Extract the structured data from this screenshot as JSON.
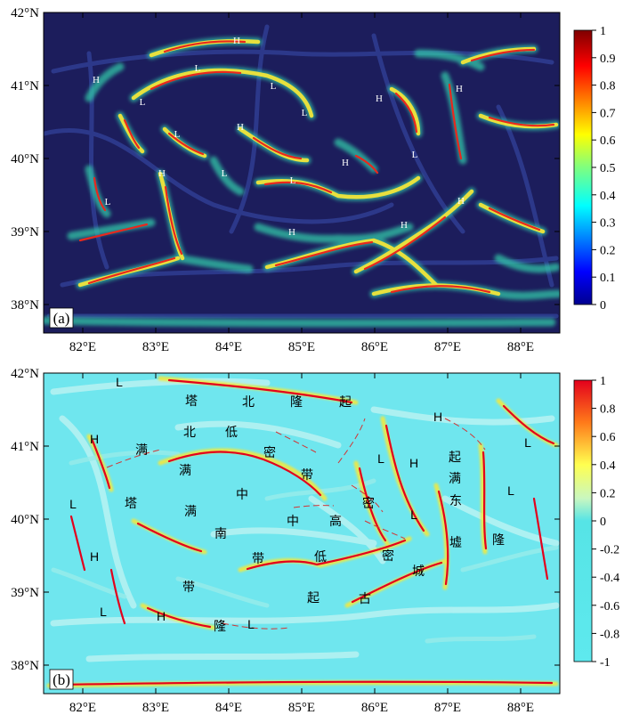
{
  "panel_a": {
    "label": "(a)",
    "lat_ticks": [
      "42°N",
      "41°N",
      "40°N",
      "39°N",
      "38°N"
    ],
    "lon_ticks": [
      "82°E",
      "83°E",
      "84°E",
      "85°E",
      "86°E",
      "87°E",
      "88°E"
    ],
    "colorbar_ticks": [
      "1",
      "0.9",
      "0.8",
      "0.7",
      "0.6",
      "0.5",
      "0.4",
      "0.3",
      "0.2",
      "0.1",
      "0"
    ],
    "markers": [
      "H",
      "H",
      "L",
      "L",
      "H",
      "L",
      "H",
      "L",
      "H",
      "L",
      "L",
      "H",
      "L",
      "L",
      "H",
      "H",
      "H",
      "L",
      "H"
    ]
  },
  "panel_b": {
    "label": "(b)",
    "lat_ticks": [
      "42°N",
      "41°N",
      "40°N",
      "39°N",
      "38°N"
    ],
    "lon_ticks": [
      "82°E",
      "83°E",
      "84°E",
      "85°E",
      "86°E",
      "87°E",
      "88°E"
    ],
    "colorbar_ticks": [
      "1",
      "0.8",
      "0.6",
      "0.4",
      "0.2",
      "0",
      "-0.2",
      "-0.4",
      "-0.6",
      "-0.8",
      "-1"
    ],
    "markers": [
      "L",
      "H",
      "H",
      "L",
      "L",
      "H",
      "L",
      "L",
      "L",
      "H",
      "L",
      "H",
      "L"
    ],
    "chinese_labels": [
      "塔",
      "北",
      "隆",
      "起",
      "北",
      "低",
      "密",
      "带",
      "满",
      "满",
      "中",
      "塔",
      "满",
      "南",
      "中",
      "高",
      "密",
      "带",
      "低",
      "密",
      "带",
      "隆",
      "起",
      "古",
      "城",
      "墟",
      "隆",
      "起",
      "满",
      "东",
      "高"
    ]
  },
  "colors": {
    "panel_a_background": "#1c1d5c",
    "panel_b_background": "#6fe6ee",
    "ridge_red": "#e8281e",
    "ridge_yellow": "#f5e83a",
    "ridge_green": "#57d98a"
  }
}
